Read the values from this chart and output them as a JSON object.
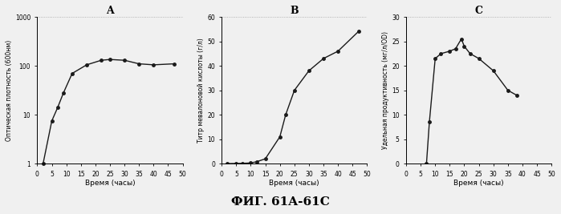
{
  "title_A": "A",
  "title_B": "B",
  "title_C": "C",
  "xlabel": "Время (часы)",
  "ylabel_A": "Оптическая плотность (600нм)",
  "ylabel_B": "Титр мевалоновой кислоты (г/л)",
  "ylabel_C": "Удельная продуктивность (мг/л/OD)",
  "caption": "ФИГ. 61A-61C",
  "A_x": [
    2,
    5,
    7,
    9,
    12,
    17,
    22,
    25,
    30,
    35,
    40,
    47
  ],
  "A_y": [
    1.0,
    7.5,
    14,
    28,
    70,
    105,
    130,
    135,
    130,
    110,
    105,
    110
  ],
  "B_x": [
    2,
    5,
    7,
    10,
    12,
    15,
    20,
    22,
    25,
    30,
    35,
    40,
    47
  ],
  "B_y": [
    0.05,
    0.1,
    0.15,
    0.3,
    0.8,
    2.0,
    11,
    20,
    30,
    38,
    43,
    46,
    54
  ],
  "C_x": [
    7,
    8,
    10,
    12,
    15,
    17,
    19,
    20,
    22,
    25,
    30,
    35,
    38
  ],
  "C_y": [
    0.0,
    8.5,
    21.5,
    22.5,
    23.0,
    23.5,
    25.5,
    24.0,
    22.5,
    21.5,
    19.0,
    15.0,
    14.0
  ],
  "A_ylim": [
    1,
    1000
  ],
  "A_xlim": [
    0,
    50
  ],
  "B_ylim": [
    0,
    60
  ],
  "B_xlim": [
    0,
    50
  ],
  "C_ylim": [
    0,
    30
  ],
  "C_xlim": [
    0,
    50
  ],
  "A_yticks": [
    1,
    10,
    100,
    1000
  ],
  "A_ytick_labels": [
    "1",
    "10",
    "100",
    "1000"
  ],
  "A_xticks": [
    0,
    5,
    10,
    15,
    20,
    25,
    30,
    35,
    40,
    45,
    50
  ],
  "B_xticks": [
    0,
    5,
    10,
    15,
    20,
    25,
    30,
    35,
    40,
    45,
    50
  ],
  "B_yticks": [
    0,
    10,
    20,
    30,
    40,
    50,
    60
  ],
  "C_xticks": [
    0,
    5,
    10,
    15,
    20,
    25,
    30,
    35,
    40,
    45,
    50
  ],
  "C_yticks": [
    0,
    5,
    10,
    15,
    20,
    25,
    30
  ],
  "line_color": "#1a1a1a",
  "marker": "o",
  "markersize": 2.5,
  "linewidth": 1.0,
  "grid_color": "#999999",
  "grid_style": ":",
  "grid_alpha": 0.9,
  "bg_color": "#f0f0f0"
}
